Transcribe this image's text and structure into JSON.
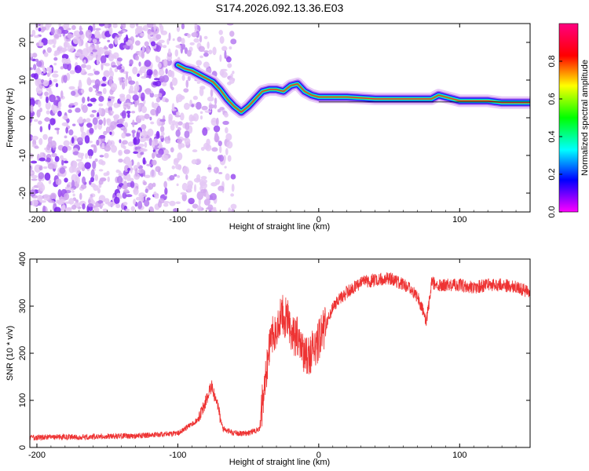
{
  "figure": {
    "title": "S174.2026.092.13.36.E03"
  },
  "chart_data": [
    {
      "type": "heatmap",
      "name": "spectrogram",
      "xlabel": "Height of straight line (km)",
      "ylabel": "Frequency (Hz)",
      "xlim": [
        -205,
        150
      ],
      "ylim": [
        -25,
        25
      ],
      "x_ticks": [
        -200,
        -100,
        0,
        100
      ],
      "y_ticks": [
        -20,
        -10,
        0,
        10,
        20
      ],
      "colorbar": {
        "label": "Normalized spectral amplitude",
        "range": [
          0,
          1
        ],
        "ticks": [
          0.0,
          0.2,
          0.4,
          0.6,
          0.8
        ],
        "tick_labels": [
          "0.0",
          "0.2",
          "0.4",
          "0.6",
          "0.8"
        ],
        "colors": [
          "#ff00ff",
          "#0000ff",
          "#00ffff",
          "#00ff00",
          "#ffff00",
          "#ff0000",
          "#ff0080"
        ]
      },
      "signal_track": {
        "x": [
          -100,
          -95,
          -90,
          -85,
          -80,
          -75,
          -70,
          -65,
          -60,
          -55,
          -50,
          -45,
          -40,
          -35,
          -30,
          -25,
          -20,
          -15,
          -10,
          -5,
          0,
          10,
          20,
          40,
          60,
          80,
          85,
          90,
          100,
          110,
          120,
          130,
          140,
          150
        ],
        "freq_hz": [
          14,
          13,
          12.5,
          11.5,
          10.5,
          9.5,
          7.5,
          5,
          3,
          1.5,
          3,
          5,
          7,
          7.5,
          7.5,
          7,
          8.5,
          9,
          7,
          6,
          5.5,
          5.5,
          5.5,
          5,
          5,
          5,
          6,
          5.5,
          4.5,
          4.5,
          4.5,
          4,
          4,
          4
        ]
      }
    },
    {
      "type": "line",
      "name": "snr",
      "xlabel": "Height of straight line (km)",
      "ylabel": "SNR (10 * v/v)",
      "xlim": [
        -205,
        150
      ],
      "ylim": [
        0,
        400
      ],
      "x_ticks": [
        -200,
        -100,
        0,
        100
      ],
      "y_ticks": [
        0,
        100,
        200,
        300,
        400
      ],
      "series": [
        {
          "name": "SNR",
          "color": "#ee3333",
          "x": [
            -205,
            -190,
            -170,
            -150,
            -130,
            -110,
            -100,
            -95,
            -85,
            -80,
            -76,
            -72,
            -68,
            -60,
            -50,
            -42,
            -38,
            -34,
            -30,
            -26,
            -22,
            -18,
            -14,
            -10,
            -6,
            -2,
            0,
            5,
            10,
            20,
            30,
            40,
            50,
            60,
            65,
            70,
            73,
            76,
            78,
            80,
            85,
            90,
            100,
            110,
            120,
            130,
            140,
            150
          ],
          "y": [
            20,
            22,
            22,
            24,
            24,
            28,
            30,
            40,
            60,
            100,
            130,
            90,
            40,
            30,
            30,
            40,
            150,
            230,
            250,
            280,
            270,
            240,
            230,
            200,
            200,
            210,
            230,
            260,
            300,
            330,
            350,
            355,
            360,
            345,
            340,
            320,
            300,
            265,
            300,
            350,
            345,
            345,
            345,
            340,
            345,
            345,
            340,
            330
          ]
        }
      ]
    }
  ]
}
